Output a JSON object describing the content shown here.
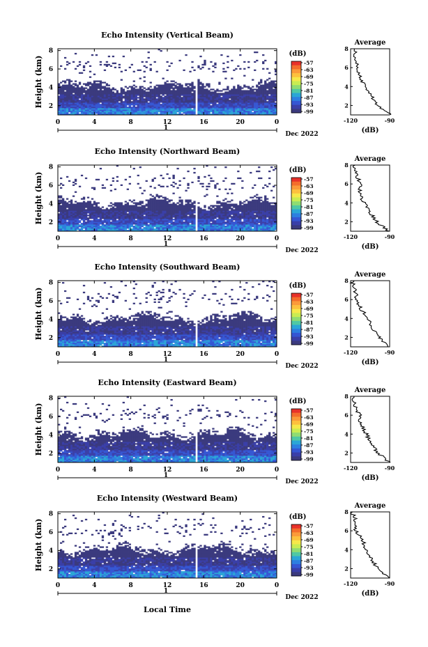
{
  "figure": {
    "xlabel": "Local Time",
    "colorbar_unit": "(dB)",
    "colorbar_ticks": [
      "-57",
      "-63",
      "-69",
      "-75",
      "-81",
      "-87",
      "-93",
      "-99"
    ],
    "colorbar_colors": [
      "#e8322a",
      "#f46d2c",
      "#fb9a3a",
      "#fdc03e",
      "#f6e84a",
      "#c9ec52",
      "#8fdc72",
      "#4fc8a4",
      "#2ba6d6",
      "#2d7fe0",
      "#3556d3",
      "#3a3fa8",
      "#3b3a7e"
    ],
    "date_label": "Dec 2022",
    "day_marker": "1",
    "empty_color": "#ffffff"
  },
  "chart_data": [
    {
      "type": "heatmap",
      "title": "Echo Intensity (Vertical Beam)",
      "ylabel": "Height (km)",
      "x_ticks": [
        "0",
        "4",
        "8",
        "12",
        "16",
        "20",
        "0"
      ],
      "y_ticks": [
        "2",
        "4",
        "6",
        "8"
      ],
      "xlim": [
        0,
        24
      ],
      "ylim": [
        1,
        8.2
      ],
      "gap_time": 15.2,
      "profile": {
        "title": "Average",
        "xlabel": "(dB)",
        "x_ticks": [
          "-120",
          "-90"
        ],
        "y_ticks": [
          "2",
          "4",
          "6",
          "8"
        ],
        "heights": [
          1,
          2,
          3,
          4,
          5,
          6,
          7,
          8
        ],
        "values": [
          -88,
          -100,
          -104,
          -108,
          -113,
          -114,
          -116,
          -117
        ]
      }
    },
    {
      "type": "heatmap",
      "title": "Echo Intensity (Northward Beam)",
      "ylabel": "Height (km)",
      "x_ticks": [
        "0",
        "4",
        "8",
        "12",
        "16",
        "20",
        "0"
      ],
      "y_ticks": [
        "2",
        "4",
        "6",
        "8"
      ],
      "xlim": [
        0,
        24
      ],
      "ylim": [
        1,
        8.2
      ],
      "gap_time": 15.2,
      "profile": {
        "title": "Average",
        "xlabel": "(dB)",
        "x_ticks": [
          "-120",
          "-90"
        ],
        "y_ticks": [
          "2",
          "4",
          "6",
          "8"
        ],
        "heights": [
          1,
          2,
          3,
          4,
          5,
          6,
          7,
          8
        ],
        "values": [
          -91,
          -100,
          -105,
          -110,
          -113,
          -112,
          -116,
          -118
        ]
      }
    },
    {
      "type": "heatmap",
      "title": "Echo Intensity (Southward Beam)",
      "ylabel": "Height (km)",
      "x_ticks": [
        "0",
        "4",
        "8",
        "12",
        "16",
        "20",
        "0"
      ],
      "y_ticks": [
        "2",
        "4",
        "6",
        "8"
      ],
      "xlim": [
        0,
        24
      ],
      "ylim": [
        1,
        8.2
      ],
      "gap_time": 15.2,
      "profile": {
        "title": "Average",
        "xlabel": "(dB)",
        "x_ticks": [
          "-120",
          "-90"
        ],
        "y_ticks": [
          "2",
          "4",
          "6",
          "8"
        ],
        "heights": [
          1,
          2,
          3,
          4,
          5,
          6,
          7,
          8
        ],
        "values": [
          -90,
          -98,
          -103,
          -107,
          -112,
          -115,
          -117,
          -119
        ]
      }
    },
    {
      "type": "heatmap",
      "title": "Echo Intensity (Eastward Beam)",
      "ylabel": "Height (km)",
      "x_ticks": [
        "0",
        "4",
        "8",
        "12",
        "16",
        "20",
        "0"
      ],
      "y_ticks": [
        "2",
        "4",
        "6",
        "8"
      ],
      "xlim": [
        0,
        24
      ],
      "ylim": [
        1,
        8.2
      ],
      "gap_time": 15.2,
      "profile": {
        "title": "Average",
        "xlabel": "(dB)",
        "x_ticks": [
          "-120",
          "-90"
        ],
        "y_ticks": [
          "2",
          "4",
          "6",
          "8"
        ],
        "heights": [
          1,
          2,
          3,
          4,
          5,
          6,
          7,
          8
        ],
        "values": [
          -90,
          -99,
          -104,
          -108,
          -112,
          -113,
          -117,
          -118
        ]
      }
    },
    {
      "type": "heatmap",
      "title": "Echo Intensity (Westward Beam)",
      "ylabel": "Height (km)",
      "x_ticks": [
        "0",
        "4",
        "8",
        "12",
        "16",
        "20",
        "0"
      ],
      "y_ticks": [
        "2",
        "4",
        "6",
        "8"
      ],
      "xlim": [
        0,
        24
      ],
      "ylim": [
        1,
        8.2
      ],
      "gap_time": 15.2,
      "profile": {
        "title": "Average",
        "xlabel": "(dB)",
        "x_ticks": [
          "-120",
          "-90"
        ],
        "y_ticks": [
          "2",
          "4",
          "6",
          "8"
        ],
        "heights": [
          1,
          2,
          3,
          4,
          5,
          6,
          7,
          8
        ],
        "values": [
          -91,
          -99,
          -104,
          -108,
          -111,
          -116,
          -116,
          -119
        ]
      }
    }
  ]
}
